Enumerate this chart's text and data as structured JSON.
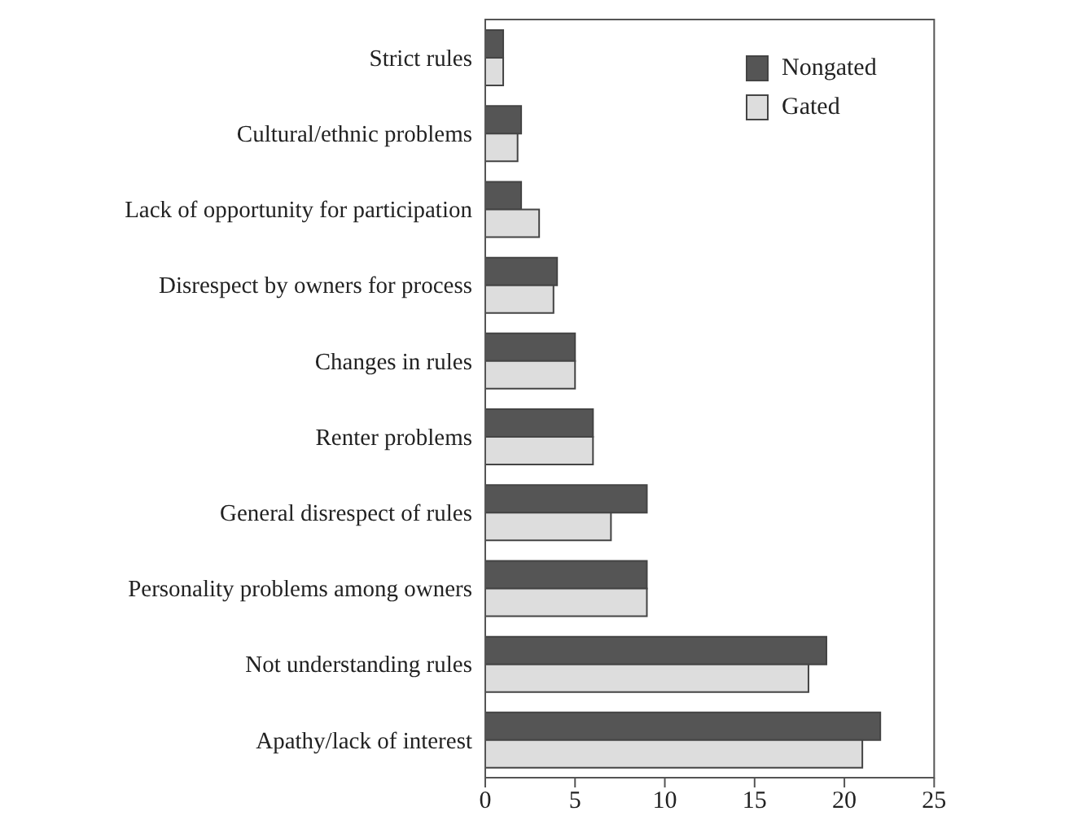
{
  "chart_data": {
    "type": "bar",
    "orientation": "horizontal",
    "categories": [
      "Strict rules",
      "Cultural/ethnic problems",
      "Lack of opportunity for participation",
      "Disrespect by owners for process",
      "Changes in rules",
      "Renter problems",
      "General disrespect of rules",
      "Personality problems among owners",
      "Not understanding rules",
      "Apathy/lack of interest"
    ],
    "series": [
      {
        "name": "Nongated",
        "color": "#555555",
        "values": [
          1,
          2,
          2,
          4,
          5,
          6,
          9,
          9,
          19,
          22
        ]
      },
      {
        "name": "Gated",
        "color": "#dddddd",
        "values": [
          1,
          1.8,
          3,
          3.8,
          5,
          6,
          7,
          9,
          18,
          21
        ]
      }
    ],
    "xlim": [
      0,
      25
    ],
    "xticks": [
      0,
      5,
      10,
      15,
      20,
      25
    ],
    "grid": false,
    "legend": "top right"
  }
}
